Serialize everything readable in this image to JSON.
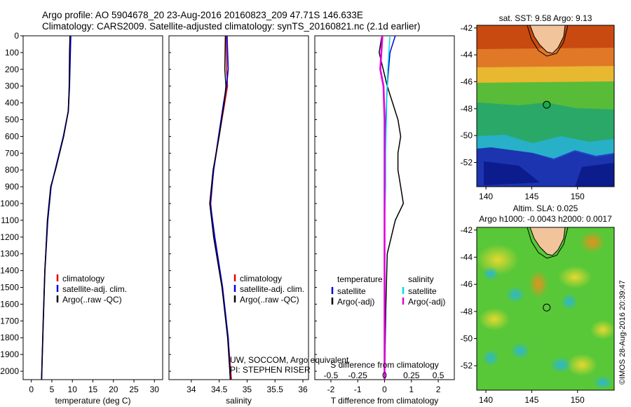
{
  "title_line1": "Argo profile: AO 5904678_20 23-Aug-2016 20160823_209 47.71S 146.633E",
  "title_line2": "Climatology: CARS2009. Satellite-adjusted climatology: synTS_20160821.nc (2.1d earlier)",
  "footer_note": "UW, SOCCOM, Argo equivalent",
  "footer_pi": "PI: STEPHEN RISER",
  "copyright": "©IMOS 28-Aug-2016 20:39:47",
  "colors": {
    "climatology": "#e00000",
    "satellite": "#0000e0",
    "argo": "#000000",
    "salinity_satellite": "#00e0e0",
    "salinity_argo": "#e000e0"
  },
  "chart_data": [
    {
      "type": "line",
      "xlabel": "temperature (deg C)",
      "xlim": [
        -2,
        32
      ],
      "xticks": [
        0,
        5,
        10,
        15,
        20,
        25,
        30
      ],
      "ylim": [
        0,
        2050
      ],
      "yticks": [
        0,
        100,
        200,
        300,
        400,
        500,
        600,
        700,
        800,
        900,
        1000,
        1100,
        1200,
        1300,
        1400,
        1500,
        1600,
        1700,
        1800,
        1900,
        2000
      ],
      "legend": [
        "climatology",
        "satellite-adj. clim.",
        "Argo(..raw -QC)"
      ],
      "series": [
        {
          "name": "climatology",
          "depth": [
            0,
            100,
            300,
            450,
            600,
            800,
            900,
            1100,
            1400,
            1700,
            2050
          ],
          "values": [
            9.5,
            9.4,
            9.3,
            9.0,
            7.8,
            5.8,
            4.8,
            4.0,
            3.3,
            2.9,
            2.5
          ]
        },
        {
          "name": "satellite-adj. clim.",
          "depth": [
            0,
            100,
            300,
            450,
            600,
            800,
            900,
            1100,
            1400,
            1700,
            2050
          ],
          "values": [
            9.6,
            9.5,
            9.3,
            9.0,
            7.8,
            5.8,
            4.8,
            4.0,
            3.3,
            2.9,
            2.5
          ]
        },
        {
          "name": "Argo(..raw -QC)",
          "depth": [
            0,
            100,
            300,
            450,
            600,
            800,
            900,
            1100,
            1400,
            1700,
            2050
          ],
          "values": [
            9.4,
            9.3,
            9.2,
            9.0,
            7.9,
            5.9,
            4.7,
            3.9,
            3.3,
            2.9,
            2.5
          ]
        }
      ]
    },
    {
      "type": "line",
      "xlabel": "salinity",
      "xlim": [
        33.6,
        36.1
      ],
      "xticks": [
        34,
        34.5,
        35,
        35.5,
        36
      ],
      "ylim": [
        0,
        2050
      ],
      "legend": [
        "climatology",
        "satellite-adj. clim.",
        "Argo(..raw -QC)"
      ],
      "series": [
        {
          "name": "climatology",
          "depth": [
            0,
            200,
            300,
            400,
            600,
            800,
            1000,
            1200,
            1500,
            1800,
            2050
          ],
          "values": [
            34.62,
            34.63,
            34.65,
            34.6,
            34.5,
            34.4,
            34.35,
            34.4,
            34.55,
            34.66,
            34.72
          ]
        },
        {
          "name": "satellite-adj. clim.",
          "depth": [
            0,
            200,
            300,
            400,
            600,
            800,
            1000,
            1200,
            1500,
            1800,
            2050
          ],
          "values": [
            34.64,
            34.66,
            34.63,
            34.58,
            34.49,
            34.4,
            34.34,
            34.42,
            34.56,
            34.66,
            34.7
          ]
        },
        {
          "name": "Argo(..raw -QC)",
          "depth": [
            0,
            200,
            300,
            400,
            600,
            800,
            1000,
            1200,
            1500,
            1800,
            2050
          ],
          "values": [
            34.61,
            34.6,
            34.62,
            34.59,
            34.5,
            34.39,
            34.33,
            34.4,
            34.55,
            34.65,
            34.7
          ]
        }
      ]
    },
    {
      "type": "line",
      "xlabel": "T difference from climatology",
      "xlabel_top": "S difference from climatology",
      "xlim": [
        -2.6,
        2.6
      ],
      "xticks": [
        -2,
        -1,
        0,
        1,
        2
      ],
      "xticks_top": [
        -0.5,
        -0.25,
        0,
        0.25,
        0.5
      ],
      "ylim": [
        0,
        2050
      ],
      "legend_headers": [
        "temperature",
        "salinity"
      ],
      "legend": [
        "satellite",
        "Argo(-adj)",
        "satellite",
        "Argo(-adj)"
      ],
      "series": [
        {
          "name": "temperature satellite",
          "depth": [
            0,
            100,
            300,
            500,
            800,
            1000,
            1300,
            1600,
            2050
          ],
          "values": [
            0.4,
            0.2,
            0.1,
            0.05,
            0.0,
            0.0,
            0.0,
            0.0,
            0.0
          ]
        },
        {
          "name": "temperature Argo(-adj)",
          "depth": [
            0,
            100,
            300,
            400,
            500,
            600,
            700,
            800,
            900,
            1000,
            1100,
            1300,
            1600,
            2050
          ],
          "values": [
            -0.1,
            -0.2,
            0.1,
            0.3,
            0.5,
            0.6,
            0.5,
            0.5,
            0.6,
            0.7,
            0.4,
            0.1,
            0.05,
            0.0
          ]
        },
        {
          "name": "salinity satellite",
          "depth": [
            0,
            200,
            400,
            700,
            900,
            1100,
            1400,
            2050
          ],
          "values": [
            0.05,
            0.03,
            0.02,
            0.01,
            0.01,
            0.0,
            0.0,
            0.0
          ]
        },
        {
          "name": "salinity Argo(-adj)",
          "depth": [
            0,
            200,
            300,
            500,
            800,
            1000,
            1300,
            2050
          ],
          "values": [
            -0.02,
            -0.04,
            -0.01,
            0.0,
            0.0,
            0.0,
            0.0,
            0.0
          ]
        }
      ]
    },
    {
      "type": "heatmap",
      "title": "sat. SST: 9.58 Argo: 9.13",
      "xlim": [
        139,
        154
      ],
      "ylim": [
        -53.8,
        -41.8
      ],
      "xticks": [
        140,
        145,
        150
      ],
      "yticks": [
        -42,
        -44,
        -46,
        -48,
        -50,
        -52
      ],
      "marker": {
        "lon": 146.633,
        "lat": -47.71
      }
    },
    {
      "type": "heatmap",
      "title_line1": "Altim. SLA: 0.025",
      "title_line2": "Argo h1000: -0.0043 h2000: 0.0017",
      "xlim": [
        139,
        154
      ],
      "ylim": [
        -53.8,
        -41.8
      ],
      "xticks": [
        140,
        145,
        150
      ],
      "yticks": [
        -42,
        -44,
        -46,
        -48,
        -50,
        -52
      ],
      "marker": {
        "lon": 146.633,
        "lat": -47.71
      }
    }
  ]
}
